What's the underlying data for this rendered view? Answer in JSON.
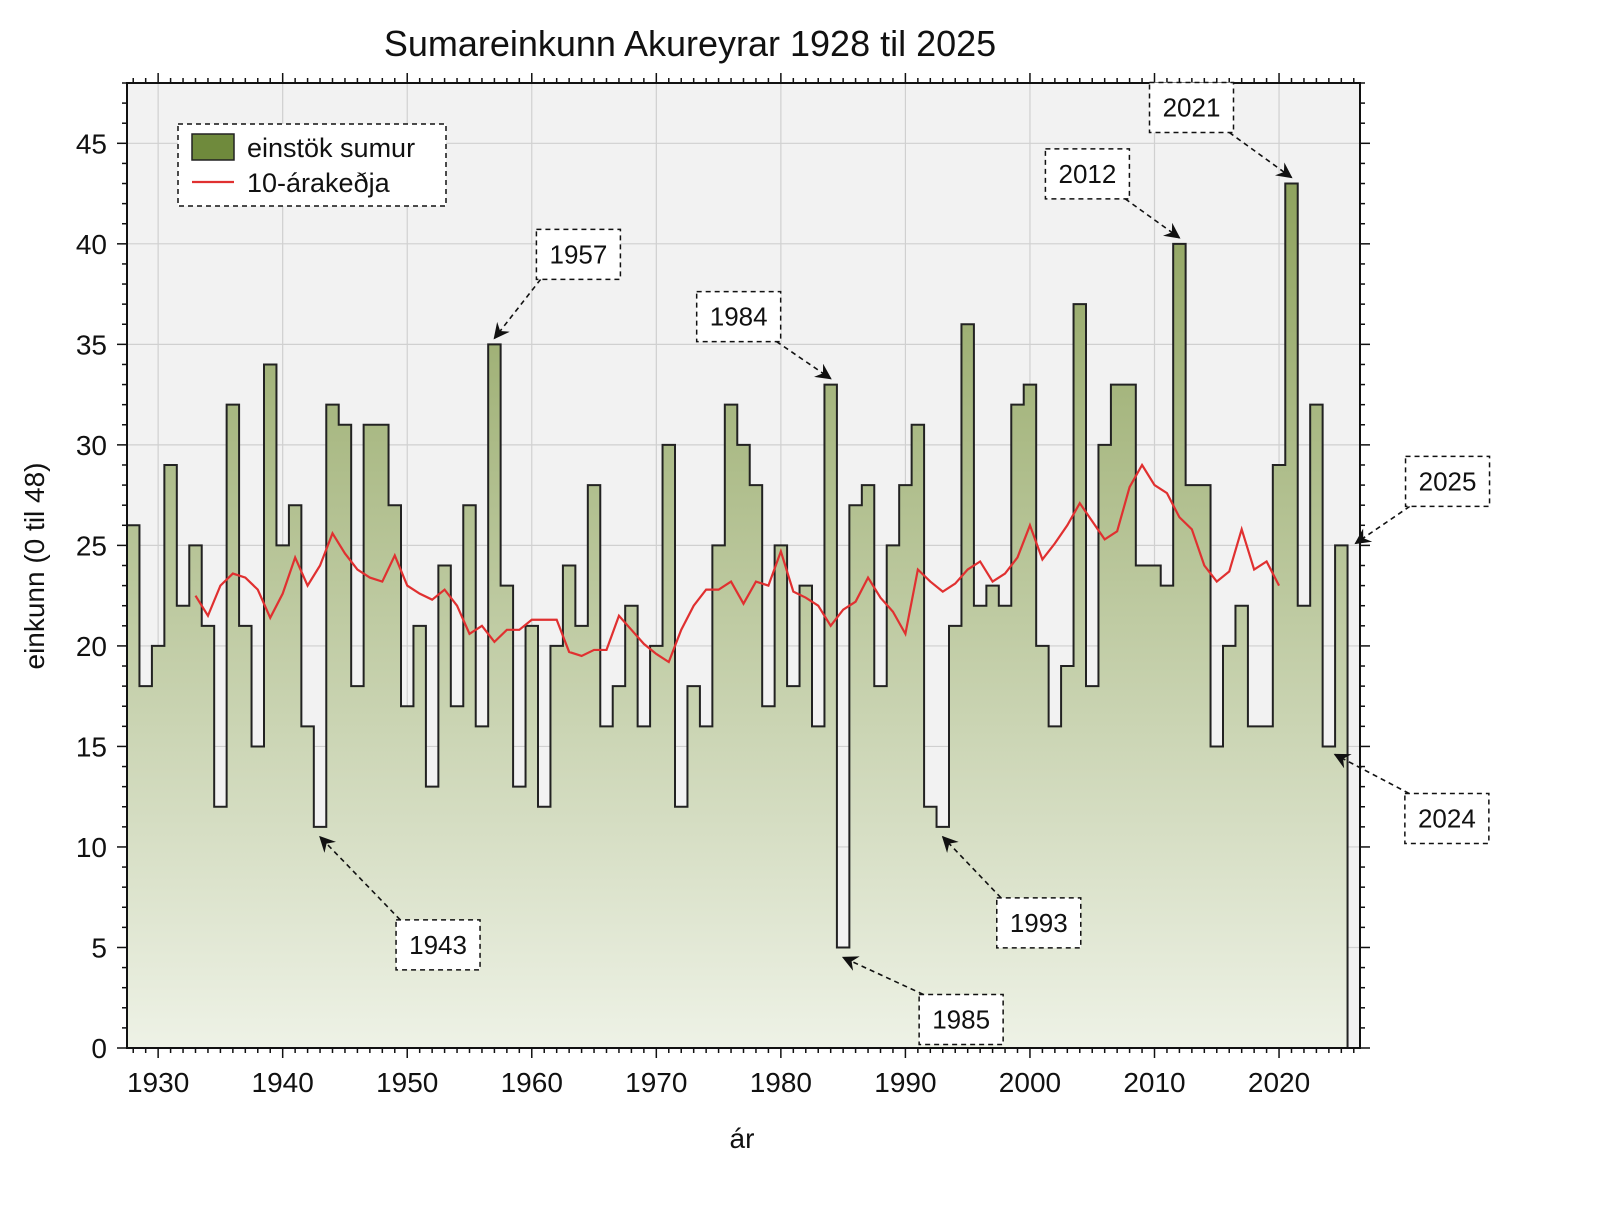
{
  "chart_data": {
    "type": "bar",
    "title": "Sumareinkunn Akureyrar 1928 til 2025",
    "xlabel": "ár",
    "ylabel": "einkunn (0 til 48)",
    "xlim": [
      1927.5,
      2026.5
    ],
    "ylim": [
      0,
      48
    ],
    "x_ticks": [
      1930,
      1940,
      1950,
      1960,
      1970,
      1980,
      1990,
      2000,
      2010,
      2020
    ],
    "y_ticks": [
      0,
      5,
      10,
      15,
      20,
      25,
      30,
      35,
      40,
      45
    ],
    "grid": true,
    "legend_position": "top-left",
    "colors": {
      "bar_fill_top": "#8fa35e",
      "bar_fill_bottom": "#eef2e6",
      "bar_edge": "#222222",
      "legend_swatch": "#6f8a3c",
      "line": "#e03030",
      "plot_background": "#f2f2f2",
      "grid": "#d0d0d0"
    },
    "series": [
      {
        "name": "einstök sumur",
        "kind": "step-bar",
        "x": [
          1928,
          1929,
          1930,
          1931,
          1932,
          1933,
          1934,
          1935,
          1936,
          1937,
          1938,
          1939,
          1940,
          1941,
          1942,
          1943,
          1944,
          1945,
          1946,
          1947,
          1948,
          1949,
          1950,
          1951,
          1952,
          1953,
          1954,
          1955,
          1956,
          1957,
          1958,
          1959,
          1960,
          1961,
          1962,
          1963,
          1964,
          1965,
          1966,
          1967,
          1968,
          1969,
          1970,
          1971,
          1972,
          1973,
          1974,
          1975,
          1976,
          1977,
          1978,
          1979,
          1980,
          1981,
          1982,
          1983,
          1984,
          1985,
          1986,
          1987,
          1988,
          1989,
          1990,
          1991,
          1992,
          1993,
          1994,
          1995,
          1996,
          1997,
          1998,
          1999,
          2000,
          2001,
          2002,
          2003,
          2004,
          2005,
          2006,
          2007,
          2008,
          2009,
          2010,
          2011,
          2012,
          2013,
          2014,
          2015,
          2016,
          2017,
          2018,
          2019,
          2020,
          2021,
          2022,
          2023,
          2024,
          2025
        ],
        "values": [
          26,
          18,
          20,
          29,
          22,
          25,
          21,
          12,
          32,
          21,
          15,
          34,
          25,
          27,
          16,
          11,
          32,
          31,
          18,
          31,
          31,
          27,
          17,
          21,
          13,
          24,
          17,
          27,
          16,
          35,
          23,
          13,
          21,
          12,
          20,
          24,
          21,
          28,
          16,
          18,
          22,
          16,
          20,
          30,
          12,
          18,
          16,
          25,
          32,
          30,
          28,
          17,
          25,
          18,
          23,
          16,
          33,
          5,
          27,
          28,
          18,
          25,
          28,
          31,
          12,
          11,
          21,
          36,
          22,
          23,
          22,
          32,
          33,
          20,
          16,
          19,
          37,
          18,
          30,
          33,
          33,
          24,
          24,
          23,
          40,
          28,
          28,
          15,
          20,
          22,
          16,
          16,
          29,
          43,
          22,
          32,
          15,
          25
        ]
      },
      {
        "name": "10-árakeðja",
        "kind": "line",
        "x": [
          1933,
          1934,
          1935,
          1936,
          1937,
          1938,
          1939,
          1940,
          1941,
          1942,
          1943,
          1944,
          1945,
          1946,
          1947,
          1948,
          1949,
          1950,
          1951,
          1952,
          1953,
          1954,
          1955,
          1956,
          1957,
          1958,
          1959,
          1960,
          1961,
          1962,
          1963,
          1964,
          1965,
          1966,
          1967,
          1968,
          1969,
          1970,
          1971,
          1972,
          1973,
          1974,
          1975,
          1976,
          1977,
          1978,
          1979,
          1980,
          1981,
          1982,
          1983,
          1984,
          1985,
          1986,
          1987,
          1988,
          1989,
          1990,
          1991,
          1992,
          1993,
          1994,
          1995,
          1996,
          1997,
          1998,
          1999,
          2000,
          2001,
          2002,
          2003,
          2004,
          2005,
          2006,
          2007,
          2008,
          2009,
          2010,
          2011,
          2012,
          2013,
          2014,
          2015,
          2016,
          2017,
          2018,
          2019,
          2020
        ],
        "values": [
          22.5,
          21.5,
          23.0,
          23.6,
          23.4,
          22.8,
          21.4,
          22.6,
          24.4,
          23.0,
          24.0,
          25.6,
          24.6,
          23.8,
          23.4,
          23.2,
          24.5,
          23.0,
          22.6,
          22.3,
          22.8,
          22.0,
          20.6,
          21.0,
          20.2,
          20.8,
          20.8,
          21.3,
          21.3,
          21.3,
          19.7,
          19.5,
          19.8,
          19.8,
          21.5,
          20.8,
          20.1,
          19.6,
          19.2,
          20.8,
          22.0,
          22.8,
          22.8,
          23.2,
          22.1,
          23.2,
          23.0,
          24.7,
          22.7,
          22.4,
          22.0,
          21.0,
          21.8,
          22.2,
          23.4,
          22.4,
          21.7,
          20.6,
          23.8,
          23.2,
          22.7,
          23.1,
          23.8,
          24.2,
          23.2,
          23.6,
          24.4,
          26.0,
          24.3,
          25.1,
          26.0,
          27.1,
          26.2,
          25.3,
          25.7,
          27.9,
          29.0,
          28.0,
          27.6,
          26.4,
          25.8,
          24.0,
          23.2,
          23.7,
          25.8,
          23.8,
          24.2,
          23.0
        ]
      }
    ],
    "annotations": [
      {
        "label": "1957",
        "year": 1957,
        "value": 35
      },
      {
        "label": "1943",
        "year": 1943,
        "value": 11
      },
      {
        "label": "1984",
        "year": 1984,
        "value": 33
      },
      {
        "label": "1985",
        "year": 1985,
        "value": 5
      },
      {
        "label": "1993",
        "year": 1993,
        "value": 11
      },
      {
        "label": "2012",
        "year": 2012,
        "value": 40
      },
      {
        "label": "2021",
        "year": 2021,
        "value": 43
      },
      {
        "label": "2025",
        "year": 2025,
        "value": 25
      },
      {
        "label": "2024",
        "year": 2024,
        "value": 15
      }
    ]
  }
}
